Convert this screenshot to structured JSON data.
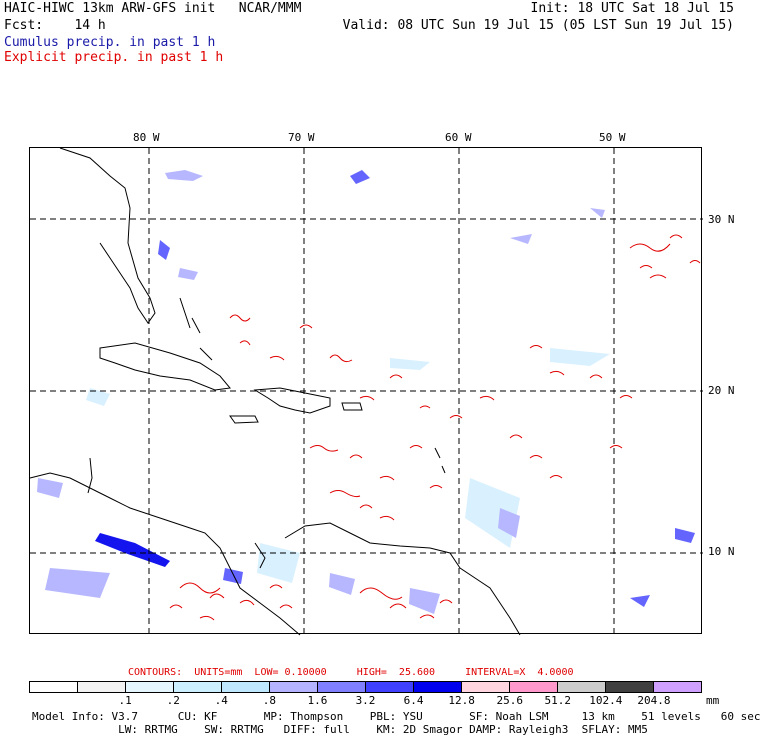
{
  "header": {
    "line1_left": "HAIC-HIWC 13km ARW-GFS init   NCAR/MMM",
    "line1_right": "Init: 18 UTC Sat 18 Jul 15",
    "line2_left": "Fcst:    14 h",
    "line2_right": "Valid: 08 UTC Sun 19 Jul 15 (05 LST Sun 19 Jul 15)",
    "cumulus": "Cumulus precip. in past 1 h",
    "explicit": "Explicit precip. in past 1 h"
  },
  "map": {
    "longitude_labels": [
      "80 W",
      "70 W",
      "60 W",
      "50 W"
    ],
    "latitude_labels": [
      "30 N",
      "20 N",
      "10 N"
    ],
    "coastline_color": "#000000",
    "contour_color": "#e00000",
    "precip_shade_colors": [
      "#d9f1ff",
      "#b7b7ff",
      "#6464ff",
      "#1414ee"
    ]
  },
  "contours": {
    "text": "CONTOURS:  UNITS=mm  LOW= 0.10000     HIGH=  25.600     INTERVAL=X  4.0000"
  },
  "colorbar": {
    "colors": [
      "#ffffff",
      "#f2f2f2",
      "#e6f6ff",
      "#ccf0ff",
      "#bfe8ff",
      "#b3b3ff",
      "#8080ff",
      "#4040ff",
      "#0000ee",
      "#ffd6e0",
      "#ff99cc",
      "#cccccc",
      "#404040",
      "#d0a0ff"
    ],
    "ticks": [
      ".1",
      ".2",
      ".4",
      ".8",
      "1.6",
      "3.2",
      "6.4",
      "12.8",
      "25.6",
      "51.2",
      "102.4",
      "204.8"
    ],
    "unit": "mm"
  },
  "footer": {
    "line1": "Model Info: V3.7      CU: KF       MP: Thompson    PBL: YSU       SF: Noah LSM     13 km    51 levels   60 sec",
    "line2": "             LW: RRTMG    SW: RRTMG   DIFF: full    KM: 2D Smagor DAMP: Rayleigh3  SFLAY: MM5"
  }
}
